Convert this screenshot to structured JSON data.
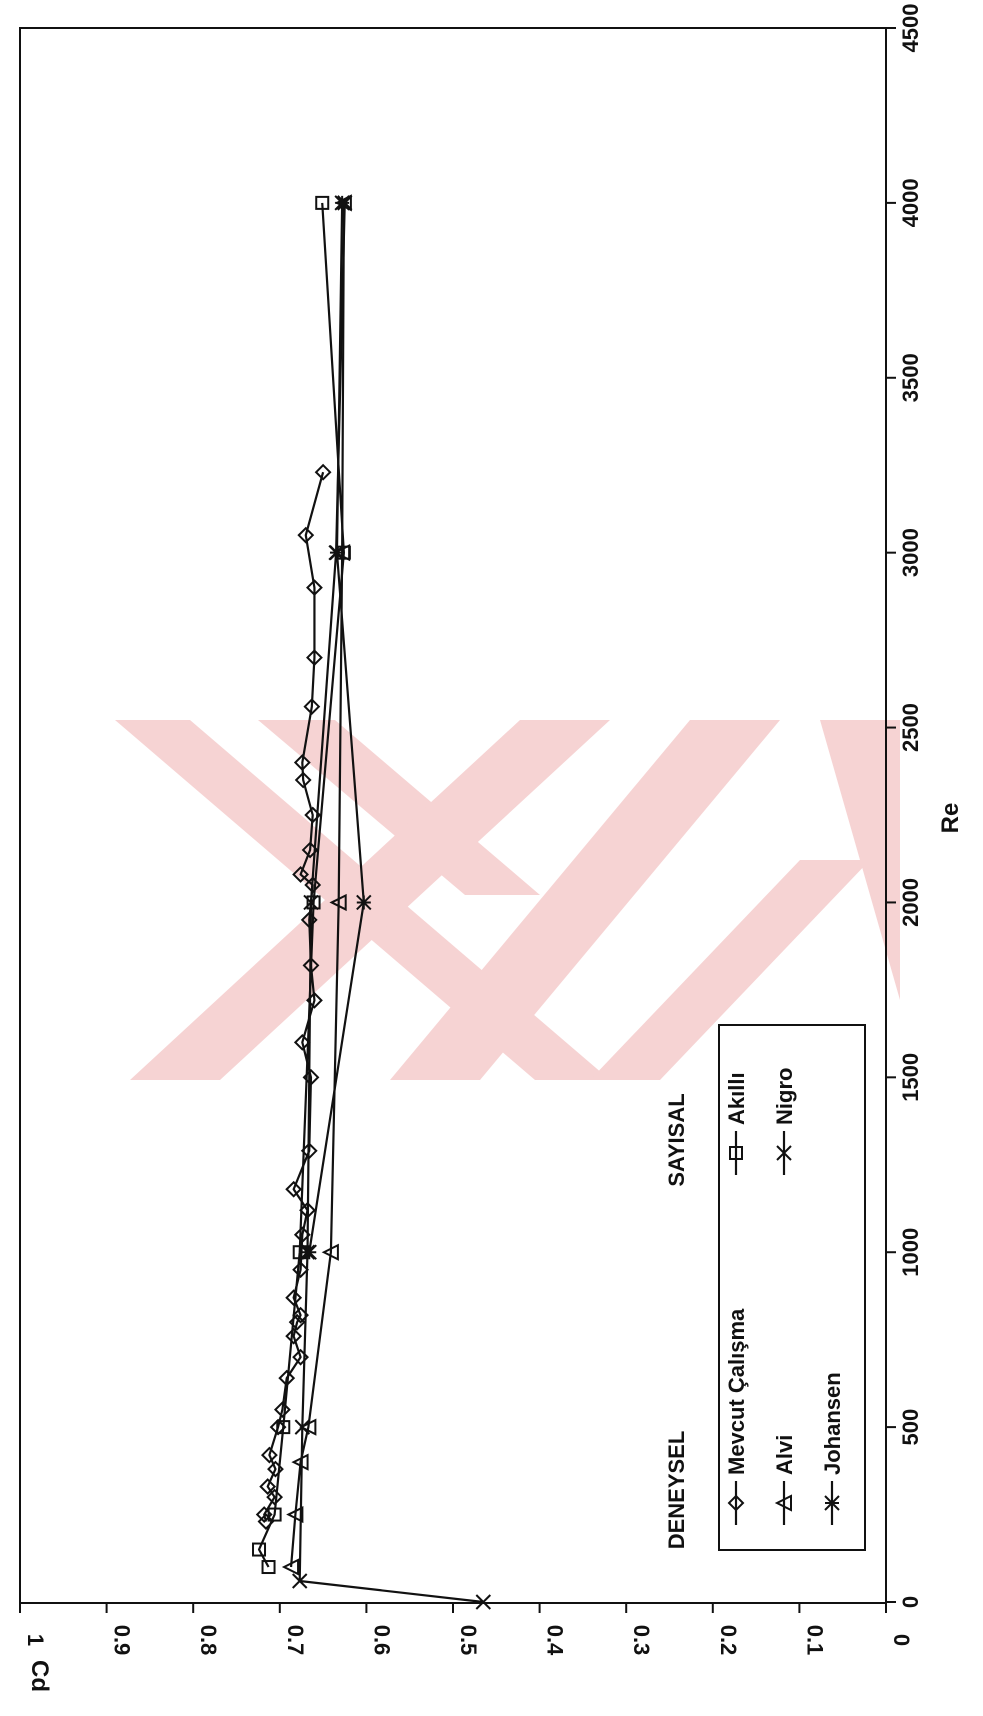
{
  "chart_data": {
    "type": "line",
    "orientation": "rotated-90-cw",
    "xlabel": "Re",
    "ylabel": "Cd",
    "xlim": [
      0,
      4500
    ],
    "ylim": [
      0,
      1
    ],
    "x_ticks": [
      "0",
      "500",
      "1000",
      "1500",
      "2000",
      "2500",
      "3000",
      "3500",
      "4000",
      "4500"
    ],
    "y_ticks": [
      "0",
      "0.1",
      "0.2",
      "0.3",
      "0.4",
      "0.5",
      "0.6",
      "0.7",
      "0.8",
      "0.9",
      "1"
    ],
    "grid": false,
    "legend_position": "bottom-left",
    "legend": {
      "group_labels": [
        "DENEYSEL",
        "SAYISAL"
      ]
    },
    "series": [
      {
        "name": "Mevcut Çalışma",
        "group": "DENEYSEL",
        "marker": "diamond",
        "x": [
          230,
          250,
          300,
          330,
          380,
          420,
          500,
          550,
          640,
          700,
          760,
          800,
          820,
          870,
          950,
          1050,
          1120,
          1180,
          1290,
          1500,
          1600,
          1720,
          1820,
          1950,
          2050,
          2080,
          2150,
          2250,
          2350,
          2400,
          2560,
          2700,
          2900,
          3050,
          3230
        ],
        "y": [
          0.716,
          0.718,
          0.706,
          0.714,
          0.705,
          0.712,
          0.702,
          0.697,
          0.692,
          0.676,
          0.684,
          0.68,
          0.676,
          0.684,
          0.676,
          0.674,
          0.668,
          0.684,
          0.666,
          0.664,
          0.674,
          0.66,
          0.664,
          0.666,
          0.662,
          0.676,
          0.665,
          0.662,
          0.673,
          0.674,
          0.663,
          0.66,
          0.66,
          0.67,
          0.65
        ]
      },
      {
        "name": "Akıllı",
        "group": "SAYISAL",
        "marker": "square",
        "x": [
          100,
          150,
          250,
          500,
          1000,
          2000,
          3000,
          4000
        ],
        "y": [
          0.713,
          0.724,
          0.706,
          0.696,
          0.677,
          0.661,
          0.626,
          0.651
        ]
      },
      {
        "name": "Alvi",
        "group": "DENEYSEL",
        "marker": "triangle",
        "x": [
          100,
          250,
          400,
          500,
          1000,
          2000,
          3000,
          4000
        ],
        "y": [
          0.687,
          0.682,
          0.676,
          0.667,
          0.641,
          0.632,
          0.628,
          0.626
        ]
      },
      {
        "name": "Nigro",
        "group": "SAYISAL",
        "marker": "x",
        "x": [
          0,
          60,
          500,
          1000,
          2000,
          3000,
          4000
        ],
        "y": [
          0.465,
          0.677,
          0.674,
          0.668,
          0.664,
          0.635,
          0.625
        ]
      },
      {
        "name": "Johansen",
        "group": "DENEYSEL",
        "marker": "asterisk",
        "x": [
          1000,
          2000,
          3000,
          4000
        ],
        "y": [
          0.666,
          0.603,
          0.634,
          0.628
        ]
      }
    ]
  },
  "colors": {
    "ink": "#111111",
    "watermark": "#f3c9c9"
  }
}
